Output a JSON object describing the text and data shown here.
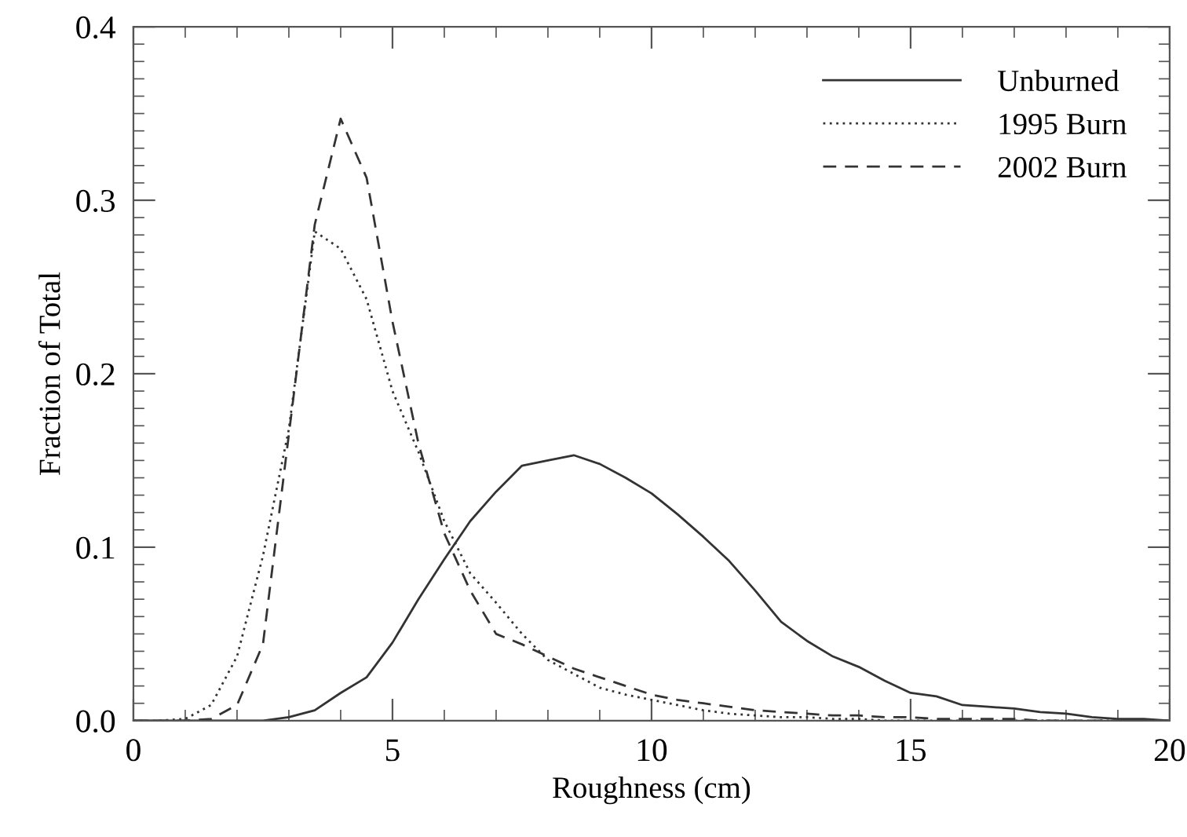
{
  "chart_data": {
    "type": "line",
    "xlabel": "Roughness (cm)",
    "ylabel": "Fraction of Total",
    "x": [
      0,
      0.5,
      1,
      1.5,
      2,
      2.5,
      3,
      3.5,
      4,
      4.5,
      5,
      5.5,
      6,
      6.5,
      7,
      7.5,
      8,
      8.5,
      9,
      9.5,
      10,
      10.5,
      11,
      11.5,
      12,
      12.5,
      13,
      13.5,
      14,
      14.5,
      15,
      15.5,
      16,
      16.5,
      17,
      17.5,
      18,
      18.5,
      19,
      19.5,
      20
    ],
    "series": [
      {
        "name": "Unburned",
        "color": "#333333",
        "line_style": "solid",
        "values": [
          0,
          0,
          0,
          0,
          0,
          0,
          0.002,
          0.006,
          0.016,
          0.025,
          0.045,
          0.07,
          0.093,
          0.115,
          0.132,
          0.147,
          0.15,
          0.153,
          0.148,
          0.14,
          0.131,
          0.119,
          0.106,
          0.092,
          0.075,
          0.057,
          0.046,
          0.037,
          0.031,
          0.023,
          0.016,
          0.014,
          0.009,
          0.008,
          0.007,
          0.005,
          0.004,
          0.002,
          0.001,
          0.001,
          0
        ]
      },
      {
        "name": "1995 Burn",
        "color": "#333333",
        "line_style": "dotted",
        "values": [
          0,
          0,
          0.001,
          0.009,
          0.037,
          0.095,
          0.168,
          0.282,
          0.272,
          0.243,
          0.19,
          0.155,
          0.115,
          0.085,
          0.068,
          0.05,
          0.035,
          0.027,
          0.019,
          0.015,
          0.012,
          0.009,
          0.006,
          0.004,
          0.003,
          0.002,
          0.002,
          0.001,
          0.001,
          0,
          0,
          0,
          0,
          0,
          0,
          0,
          0,
          0,
          0,
          0,
          0
        ]
      },
      {
        "name": "2002 Burn",
        "color": "#333333",
        "line_style": "dashed",
        "values": [
          0,
          0,
          0,
          0.001,
          0.009,
          0.044,
          0.165,
          0.286,
          0.347,
          0.313,
          0.23,
          0.16,
          0.108,
          0.075,
          0.05,
          0.044,
          0.037,
          0.03,
          0.025,
          0.02,
          0.015,
          0.012,
          0.01,
          0.008,
          0.006,
          0.005,
          0.004,
          0.003,
          0.003,
          0.002,
          0.002,
          0.001,
          0.001,
          0.001,
          0.001,
          0,
          0,
          0,
          0,
          0,
          0
        ]
      }
    ],
    "xlim": [
      0,
      20
    ],
    "xticks": [
      0,
      5,
      10,
      15,
      20
    ],
    "ylim": [
      0,
      0.4
    ],
    "yticks": [
      {
        "value": 0,
        "label": "0.0"
      },
      0.1,
      0.2,
      0.3,
      0.4
    ],
    "legend": "top right",
    "grid": false
  }
}
